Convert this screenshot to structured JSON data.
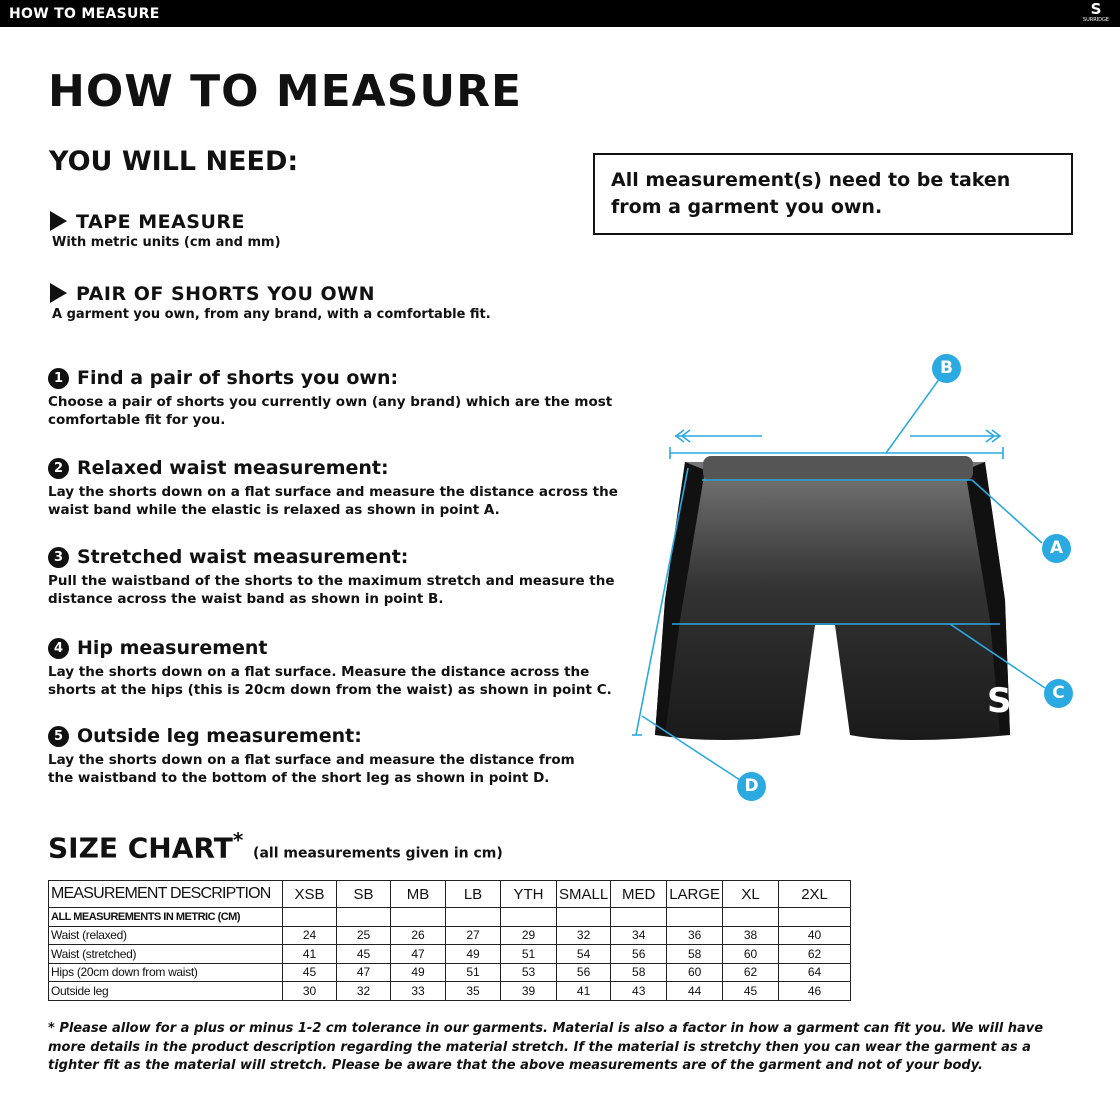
{
  "header": {
    "title": "HOW TO MEASURE",
    "logo_text": "SURRIDGE"
  },
  "title": "HOW TO MEASURE",
  "you_will_need": {
    "heading": "YOU WILL NEED:",
    "items": [
      {
        "label": "TAPE MEASURE",
        "desc": "With metric units (cm and mm)"
      },
      {
        "label": "PAIR OF SHORTS YOU OWN",
        "desc": "A garment you own, from any brand, with a comfortable fit."
      }
    ]
  },
  "note": "All measurement(s) need to be taken from a garment you own.",
  "steps": [
    {
      "num": "1",
      "title": "Find a pair of shorts you own:",
      "desc": "Choose a pair of shorts you currently own (any brand) which are the most comfortable fit for you."
    },
    {
      "num": "2",
      "title": "Relaxed waist measurement:",
      "desc": "Lay the shorts down on a flat surface and measure the distance across the waist band while the elastic is relaxed as shown in point A."
    },
    {
      "num": "3",
      "title": "Stretched waist measurement:",
      "desc": "Pull the waistband of the shorts to the maximum stretch and measure the distance across the waist band as shown in point B."
    },
    {
      "num": "4",
      "title": "Hip measurement",
      "desc": "Lay the shorts down on a flat surface. Measure the distance across the shorts at the hips (this is 20cm down from the waist)  as shown in point C."
    },
    {
      "num": "5",
      "title": "Outside leg measurement:",
      "desc": "Lay the shorts down on a flat surface and measure the distance from the waistband to the bottom of the short leg as shown in point D."
    }
  ],
  "diagram": {
    "points": [
      "A",
      "B",
      "C",
      "D"
    ],
    "accent": "#2ba9e1"
  },
  "size_chart": {
    "title": "SIZE CHART",
    "asterisk": "*",
    "subtitle": "(all measurements given in cm)",
    "columns": [
      "MEASUREMENT DESCRIPTION",
      "XSB",
      "SB",
      "MB",
      "LB",
      "YTH",
      "SMALL",
      "MED",
      "LARGE",
      "XL",
      "2XL"
    ],
    "subheader": "ALL MEASUREMENTS IN METRIC (CM)",
    "rows": [
      {
        "label": "Waist (relaxed)",
        "values": [
          "24",
          "25",
          "26",
          "27",
          "29",
          "32",
          "34",
          "36",
          "38",
          "40"
        ]
      },
      {
        "label": "Waist (stretched)",
        "values": [
          "41",
          "45",
          "47",
          "49",
          "51",
          "54",
          "56",
          "58",
          "60",
          "62"
        ]
      },
      {
        "label": "Hips (20cm down from waist)",
        "values": [
          "45",
          "47",
          "49",
          "51",
          "53",
          "56",
          "58",
          "60",
          "62",
          "64"
        ]
      },
      {
        "label": "Outside leg",
        "values": [
          "30",
          "32",
          "33",
          "35",
          "39",
          "41",
          "43",
          "44",
          "45",
          "46"
        ]
      }
    ]
  },
  "footnote": "* Please allow for a plus or minus 1-2 cm tolerance in our garments. Material is also a factor in how a garment can fit you. We will have more details in the product description regarding the material stretch.  If the material is stretchy then you can wear the garment as a tighter fit as the material will stretch.  Please be aware that the above measurements are of the garment and not of your body."
}
